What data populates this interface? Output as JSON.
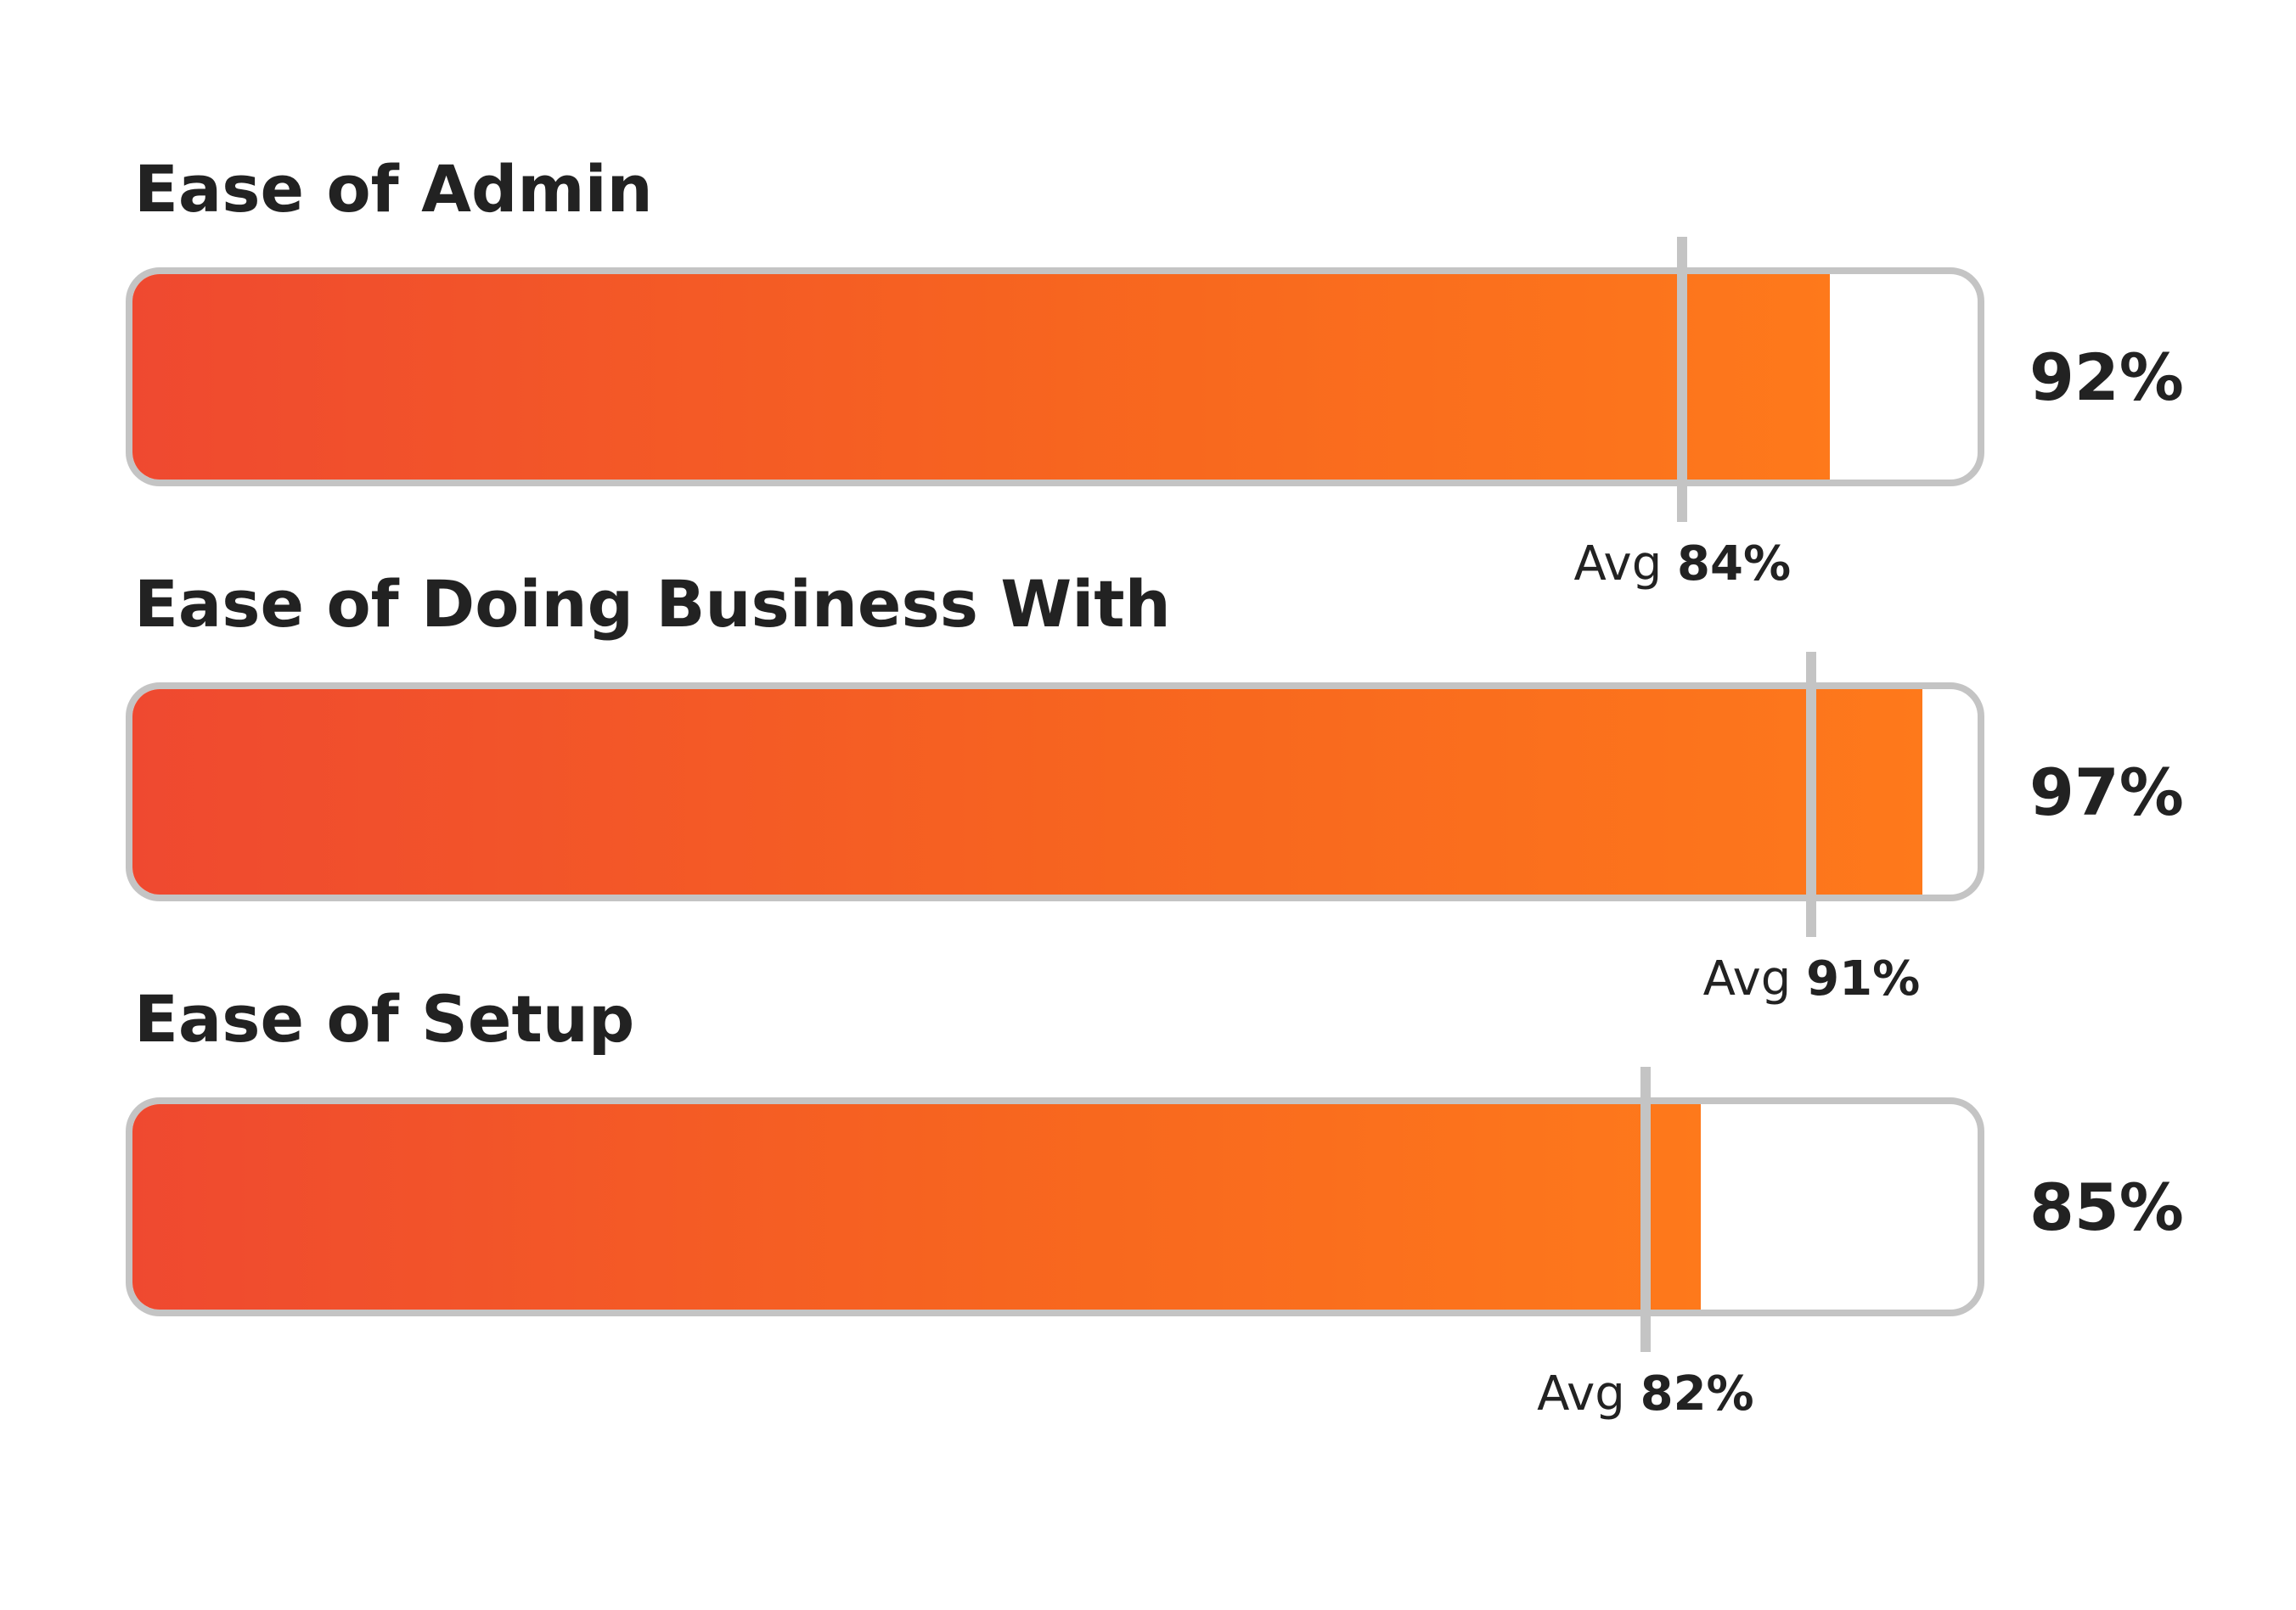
{
  "chart_data": {
    "type": "bar",
    "orientation": "horizontal",
    "xlim": [
      0,
      100
    ],
    "grid": false,
    "categories": [
      "Ease of Admin",
      "Ease of Doing Business With",
      "Ease of Setup"
    ],
    "values": [
      92,
      97,
      85
    ],
    "value_labels": [
      "92%",
      "97%",
      "85%"
    ],
    "averages": [
      84,
      91,
      82
    ],
    "average_prefix": "Avg",
    "average_labels": [
      "84%",
      "91%",
      "82%"
    ],
    "colors": {
      "fill_start": "#ef4930",
      "fill_end": "#fe791b",
      "track_border": "#c4c4c4",
      "marker": "#c4c4c4",
      "text": "#222222"
    }
  }
}
